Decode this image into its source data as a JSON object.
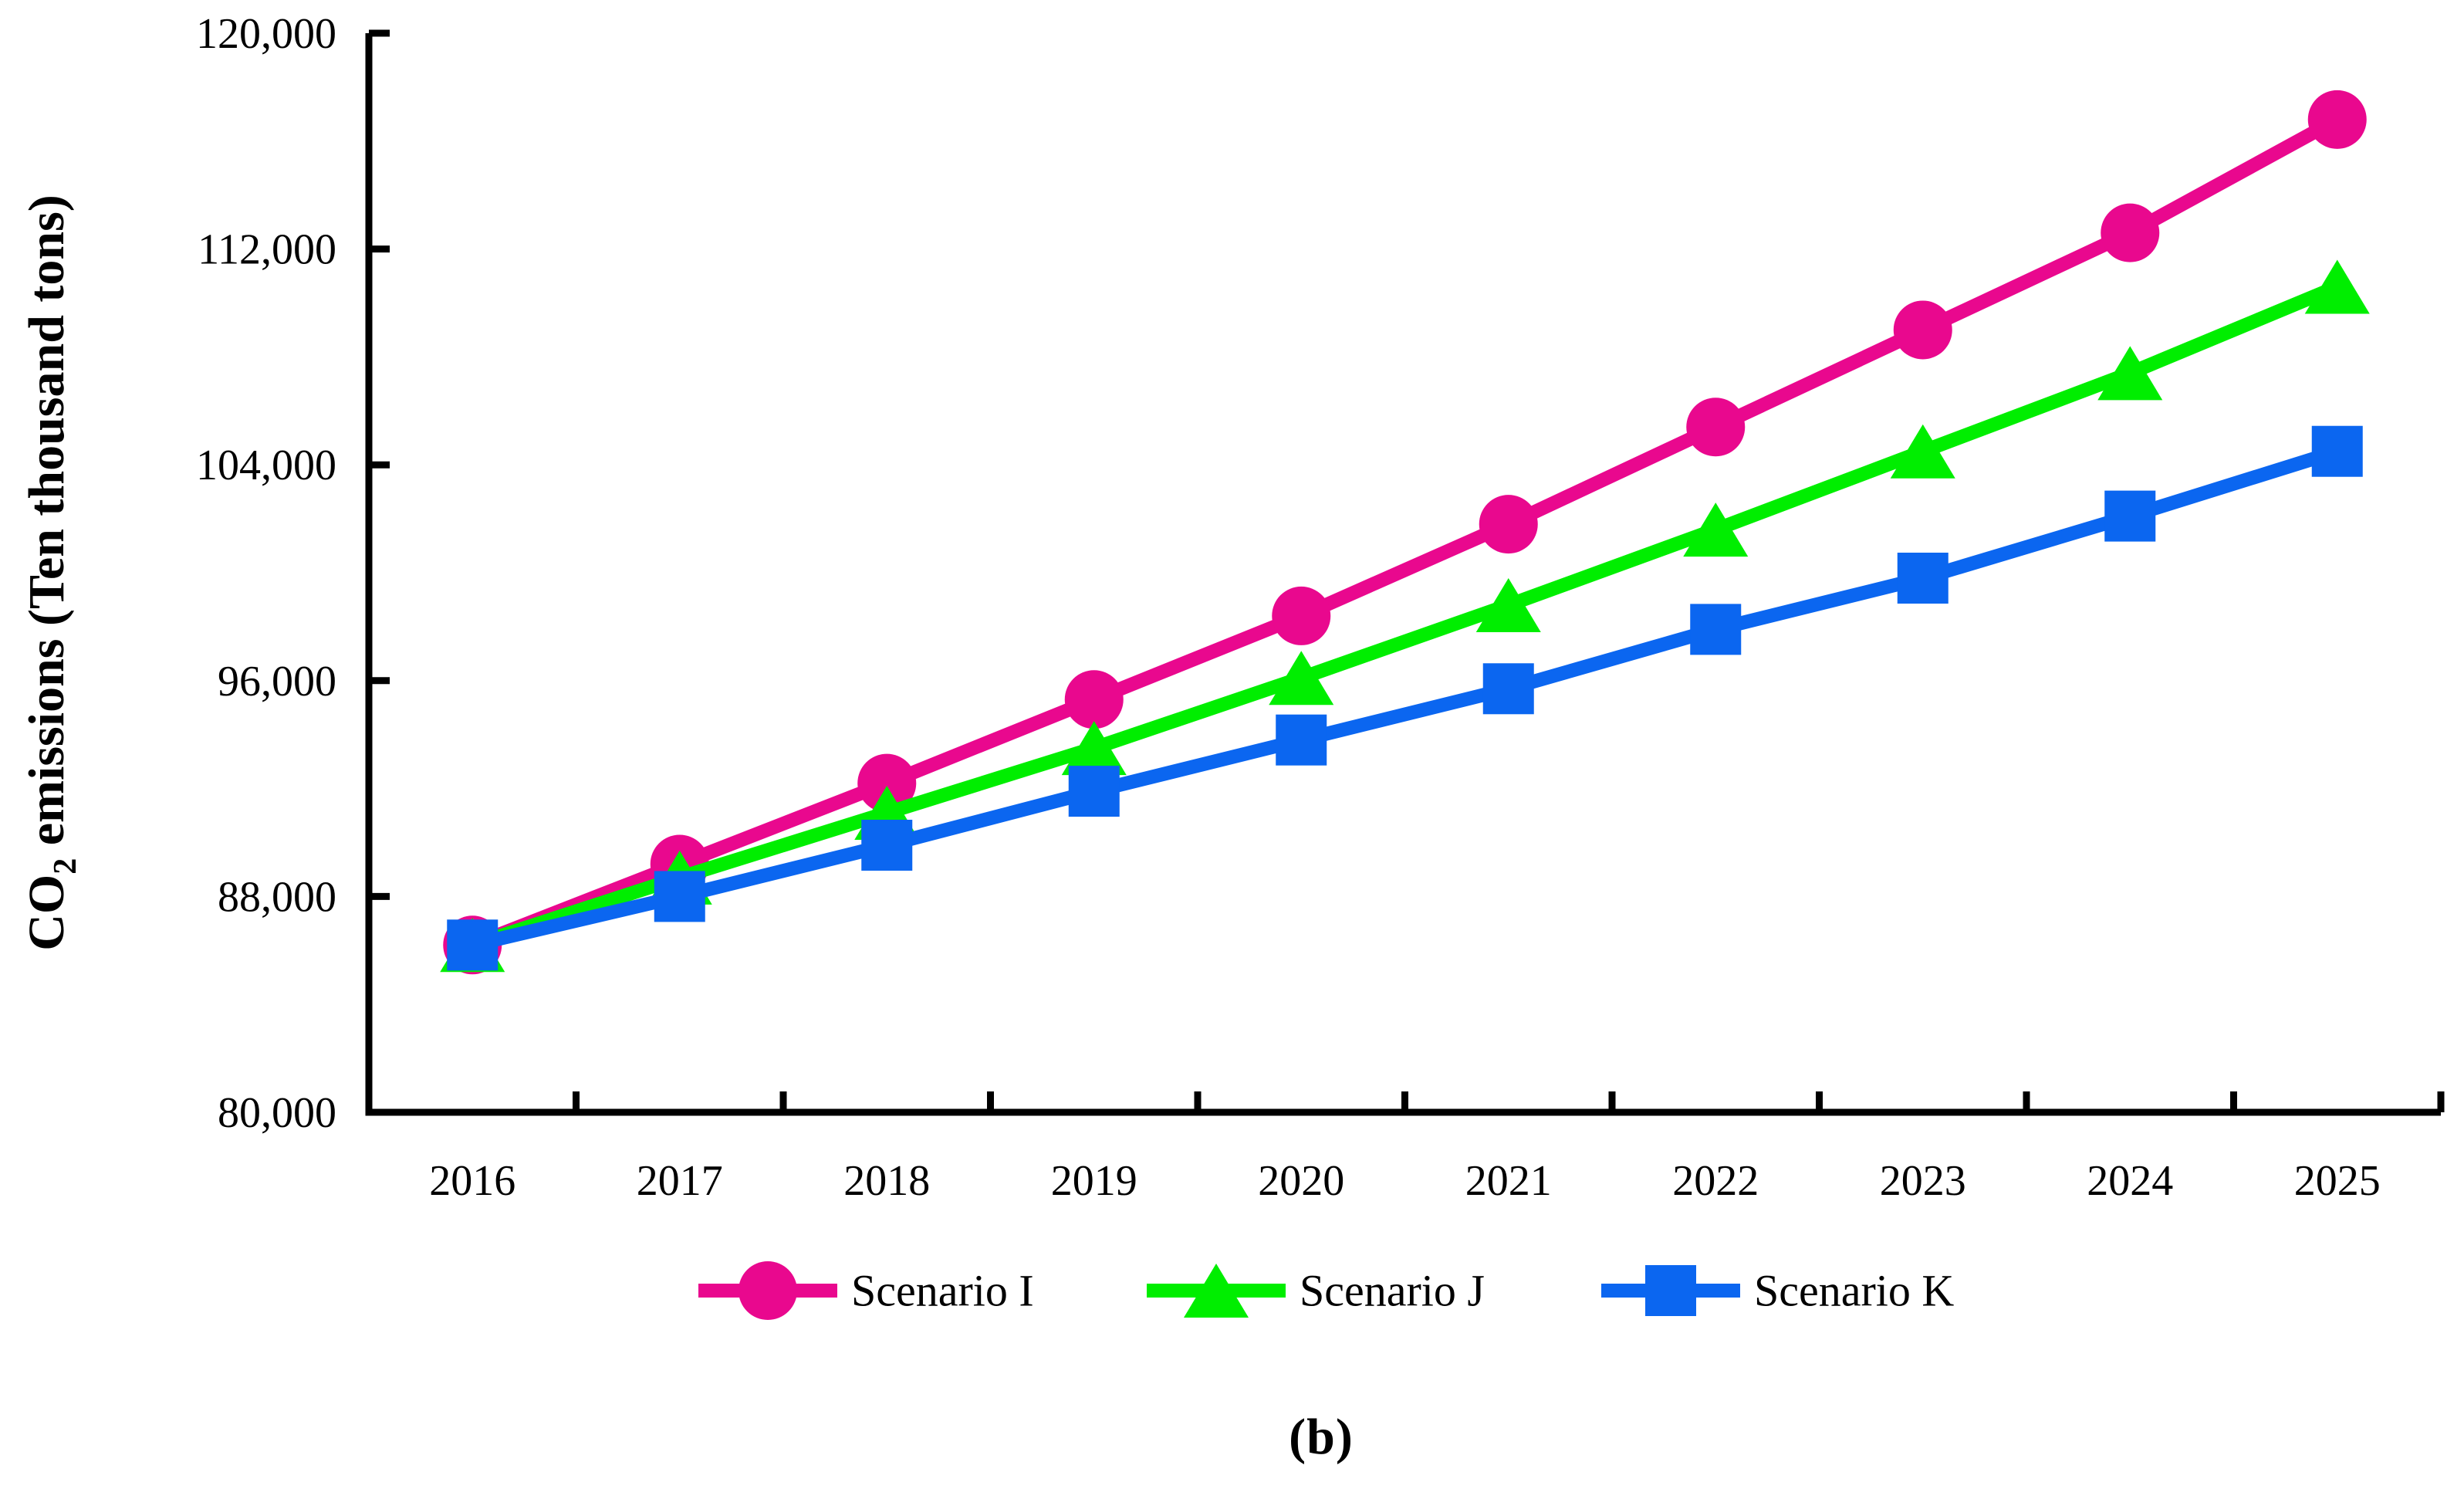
{
  "figure": {
    "caption": "(b)",
    "background": "#ffffff",
    "axis_color": "#000000"
  },
  "chart_data": {
    "type": "line",
    "title": "",
    "xlabel": "",
    "ylabel_prefix": "CO",
    "ylabel_sub": "2",
    "ylabel_suffix": " emissions (Ten thousand tons)",
    "categories": [
      "2016",
      "2017",
      "2018",
      "2019",
      "2020",
      "2021",
      "2022",
      "2023",
      "2024",
      "2025"
    ],
    "ylim": [
      80000,
      120000
    ],
    "yticks": [
      80000,
      88000,
      96000,
      104000,
      112000,
      120000
    ],
    "ytick_labels": [
      "80,000",
      "88,000",
      "96,000",
      "104,000",
      "112,000",
      "120,000"
    ],
    "grid": false,
    "legend_position": "bottom-center",
    "series": [
      {
        "name": "Scenario I",
        "color": "#E9088E",
        "marker": "circle",
        "values": [
          86200,
          89200,
          92200,
          95300,
          98400,
          101800,
          105400,
          109000,
          112600,
          116800
        ]
      },
      {
        "name": "Scenario J",
        "color": "#00EE00",
        "marker": "triangle",
        "values": [
          86200,
          88700,
          91100,
          93500,
          96100,
          98800,
          101600,
          104500,
          107400,
          110600
        ]
      },
      {
        "name": "Scenario K",
        "color": "#0B66F0",
        "marker": "square",
        "values": [
          86200,
          88000,
          89900,
          91900,
          93800,
          95700,
          97900,
          99800,
          102100,
          104500
        ]
      }
    ]
  }
}
